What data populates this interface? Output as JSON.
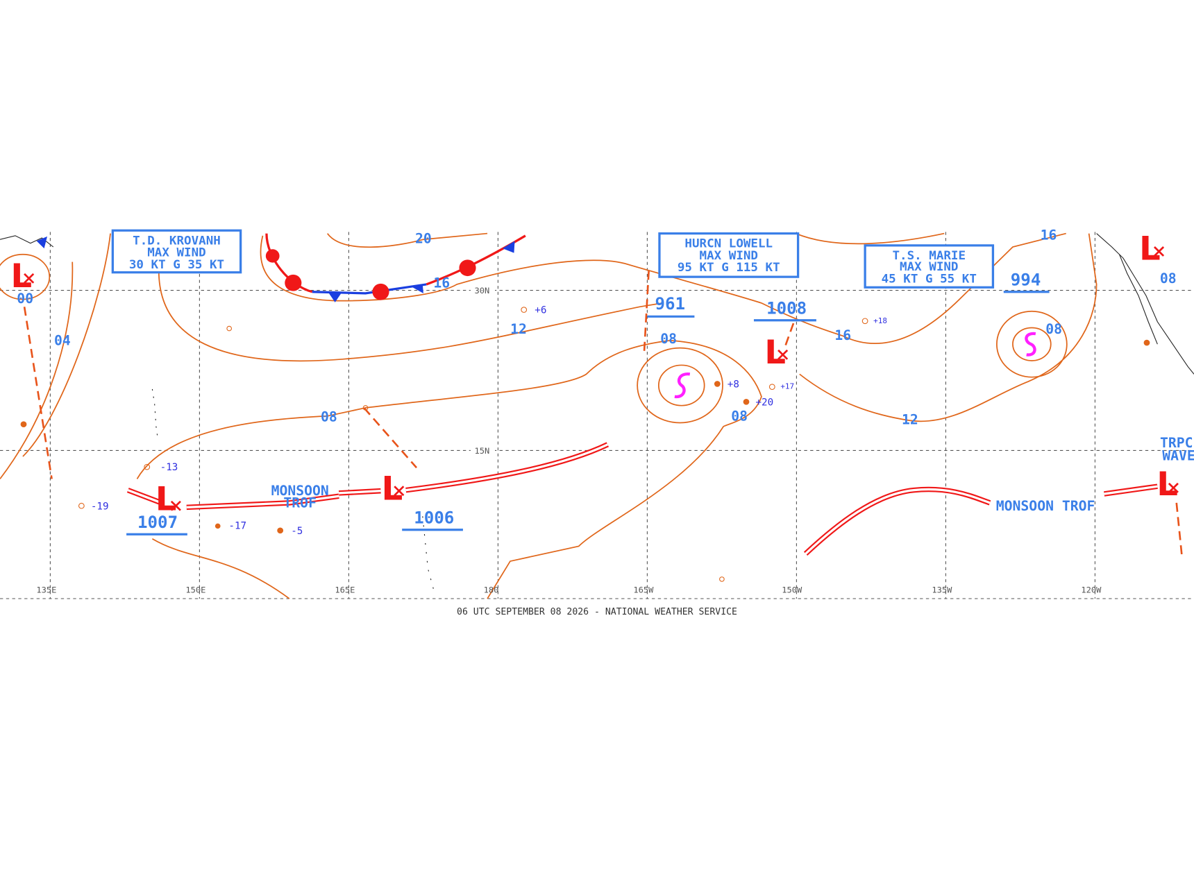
{
  "storms": [
    {
      "name": "T.D. KROVANH",
      "wind_label": "MAX WIND",
      "wind": "30 KT G 35 KT"
    },
    {
      "name": "HURCN LOWELL",
      "wind_label": "MAX WIND",
      "wind": "95 KT G 115 KT"
    },
    {
      "name": "T.S. MARIE",
      "wind_label": "MAX WIND",
      "wind": "45 KT G 55 KT"
    }
  ],
  "lows": [
    {
      "symbol": "L",
      "pressure": "1007"
    },
    {
      "symbol": "L",
      "pressure": "1006"
    },
    {
      "symbol": "L",
      "pressure": "1008"
    },
    {
      "symbol": "L"
    },
    {
      "symbol": "L"
    },
    {
      "symbol": "L"
    }
  ],
  "tropical_centers": [
    "961",
    "994"
  ],
  "isobar_labels": [
    "20",
    "16",
    "12",
    "08",
    "04",
    "00",
    "08",
    "16",
    "12",
    "08",
    "08",
    "16",
    "08"
  ],
  "features": [
    {
      "lines": [
        "MONSOON",
        "TROF"
      ]
    },
    {
      "lines": [
        "MONSOON TROF"
      ]
    },
    {
      "lines": [
        "TRPC",
        "WAVE"
      ]
    }
  ],
  "station_tendencies": [
    "+6",
    "+8",
    "+20",
    "+17",
    "+18",
    "-13",
    "-19",
    "-17",
    "-5"
  ],
  "grid": {
    "lat_labels": [
      "30N",
      "15N"
    ],
    "lon_labels": [
      "135E",
      "150E",
      "165E",
      "180",
      "165W",
      "150W",
      "135W",
      "120W"
    ]
  },
  "footer": "06 UTC SEPTEMBER 08 2026 - NATIONAL WEATHER SERVICE"
}
